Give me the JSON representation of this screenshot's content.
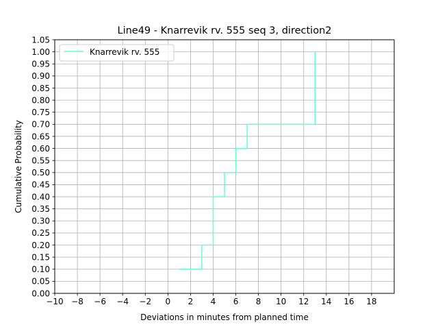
{
  "chart_data": {
    "type": "line",
    "step": "post",
    "title": "Line49 - Knarrevik rv. 555 seq 3, direction2",
    "xlabel": "Deviations in minutes from planned time",
    "ylabel": "Cumulative Probability",
    "xlim": [
      -10,
      20
    ],
    "ylim": [
      0,
      1.05
    ],
    "x_ticks": [
      -10,
      -8,
      -6,
      -4,
      -2,
      0,
      2,
      4,
      6,
      8,
      10,
      12,
      14,
      16,
      18
    ],
    "x_tick_labels": [
      "−10",
      "−8",
      "−6",
      "−4",
      "−2",
      "0",
      "2",
      "4",
      "6",
      "8",
      "10",
      "12",
      "14",
      "16",
      "18"
    ],
    "y_ticks": [
      0,
      0.05,
      0.1,
      0.15,
      0.2,
      0.25,
      0.3,
      0.35,
      0.4,
      0.45,
      0.5,
      0.55,
      0.6,
      0.65,
      0.7,
      0.75,
      0.8,
      0.85,
      0.9,
      0.95,
      1.0,
      1.05
    ],
    "y_tick_labels": [
      "0.00",
      "0.05",
      "0.10",
      "0.15",
      "0.20",
      "0.25",
      "0.30",
      "0.35",
      "0.40",
      "0.45",
      "0.50",
      "0.55",
      "0.60",
      "0.65",
      "0.70",
      "0.75",
      "0.80",
      "0.85",
      "0.90",
      "0.95",
      "1.00",
      "1.05"
    ],
    "grid": true,
    "legend_position": "top-left",
    "series": [
      {
        "name": "Knarrevik rv. 555",
        "color": "#66ffcc",
        "x": [
          1,
          3,
          4,
          5,
          6,
          7,
          13
        ],
        "y": [
          0.1,
          0.2,
          0.4,
          0.5,
          0.6,
          0.7,
          0.8
        ],
        "end_y": 1.0
      }
    ]
  }
}
